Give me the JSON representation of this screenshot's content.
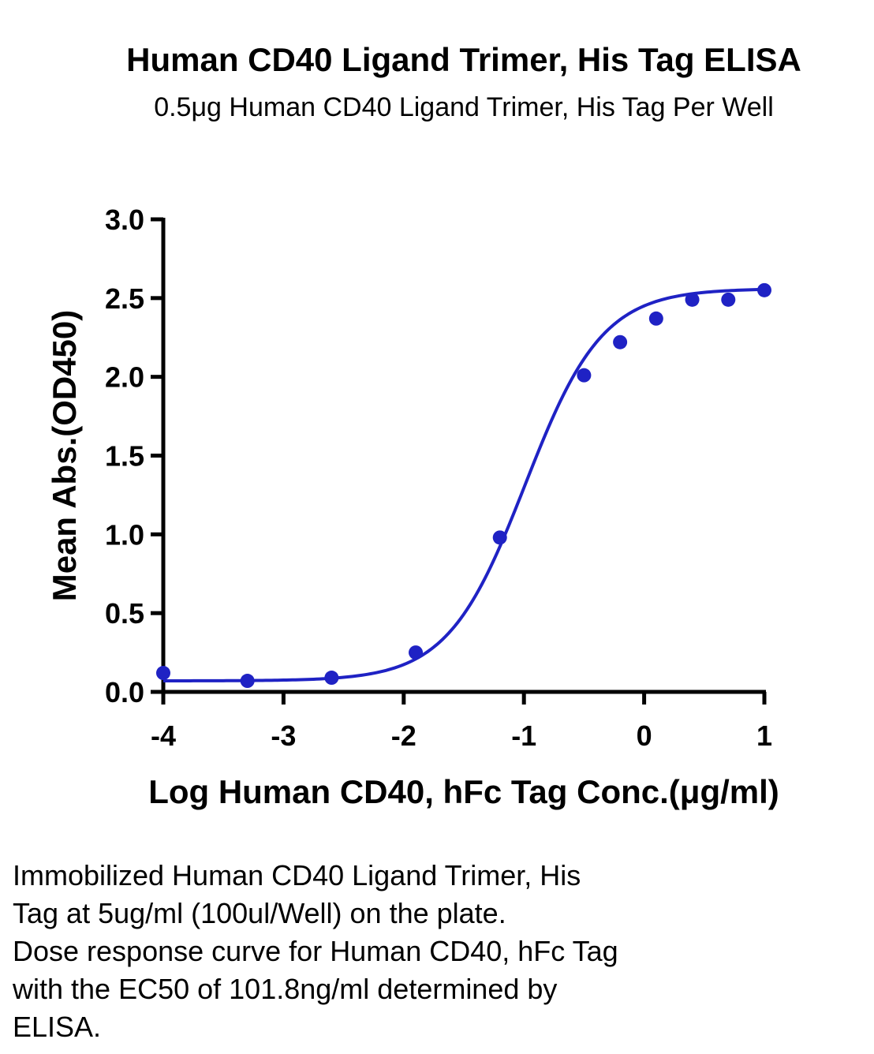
{
  "chart_data": {
    "type": "scatter",
    "title": "Human CD40 Ligand Trimer, His Tag ELISA",
    "subtitle": "0.5μg Human CD40 Ligand Trimer, His Tag Per Well",
    "xlabel": "Log Human CD40, hFc Tag Conc.(μg/ml)",
    "ylabel": "Mean Abs.(OD450)",
    "xlim": [
      -4,
      1
    ],
    "ylim": [
      0,
      3
    ],
    "x_ticks": [
      "-4",
      "-3",
      "-2",
      "-1",
      "0",
      "1"
    ],
    "y_ticks": [
      "0.0",
      "0.5",
      "1.0",
      "1.5",
      "2.0",
      "2.5",
      "3.0"
    ],
    "grid": false,
    "color": "#1f22c4",
    "points": [
      {
        "x": -4.0,
        "y": 0.12
      },
      {
        "x": -3.3,
        "y": 0.07
      },
      {
        "x": -2.6,
        "y": 0.09
      },
      {
        "x": -1.9,
        "y": 0.25
      },
      {
        "x": -1.2,
        "y": 0.98
      },
      {
        "x": -0.5,
        "y": 2.01
      },
      {
        "x": -0.2,
        "y": 2.22
      },
      {
        "x": 0.1,
        "y": 2.37
      },
      {
        "x": 0.4,
        "y": 2.49
      },
      {
        "x": 0.7,
        "y": 2.49
      },
      {
        "x": 1.0,
        "y": 2.55
      }
    ],
    "fit": {
      "model": "4PL",
      "bottom": 0.07,
      "top": 2.56,
      "logEC50": -0.99,
      "hill": 1.35
    }
  },
  "caption": [
    "Immobilized Human CD40 Ligand Trimer, His",
    "Tag at 5ug/ml (100ul/Well) on the plate.",
    "Dose response curve for Human CD40, hFc Tag",
    "with the EC50 of 101.8ng/ml determined by",
    "ELISA."
  ]
}
